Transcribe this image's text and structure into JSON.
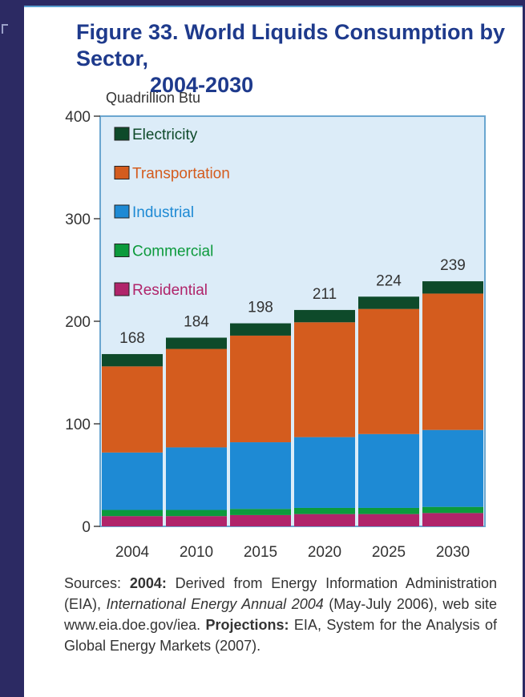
{
  "page": {
    "title_line1": "Figure 33.  World Liquids Consumption by Sector,",
    "title_line2": "2004-2030",
    "sources_label": "Sources: ",
    "sources_2004_label": "2004:",
    "sources_2004_text": " Derived from Energy Information Administration (EIA), ",
    "sources_publication": "International Energy Annual 2004",
    "sources_2004_text2": " (May-July 2006), web site www.eia.doe.gov/iea. ",
    "sources_projections_label": "Projections:",
    "sources_projections_text": " EIA, System for the Analysis of Global Energy Markets (2007)."
  },
  "colors": {
    "plot_background": "#dcecf8",
    "plot_border": "#6aa6d0",
    "title": "#1e3a8c",
    "navy": "#2c2a63"
  },
  "chart_data": {
    "type": "bar",
    "stacked": true,
    "title": "Figure 33.  World Liquids Consumption by Sector, 2004-2030",
    "ylabel": "Quadrillion Btu",
    "xlabel": "",
    "ylim": [
      0,
      400
    ],
    "yticks": [
      0,
      100,
      200,
      300,
      400
    ],
    "categories": [
      "2004",
      "2010",
      "2015",
      "2020",
      "2025",
      "2030"
    ],
    "totals": [
      168,
      184,
      198,
      211,
      224,
      239
    ],
    "legend_placement": "top-left",
    "series": [
      {
        "name": "Residential",
        "color": "#b0246a",
        "values": [
          10,
          10,
          11,
          12,
          12,
          13
        ]
      },
      {
        "name": "Commercial",
        "color": "#0c9a3c",
        "values": [
          6,
          6,
          6,
          6,
          6,
          6
        ]
      },
      {
        "name": "Industrial",
        "color": "#1e8ad4",
        "values": [
          56,
          61,
          65,
          69,
          72,
          75
        ]
      },
      {
        "name": "Transportation",
        "color": "#d45c1e",
        "values": [
          84,
          96,
          104,
          112,
          122,
          133
        ]
      },
      {
        "name": "Electricity",
        "color": "#0e4a2a",
        "values": [
          12,
          11,
          12,
          12,
          12,
          12
        ]
      }
    ]
  }
}
